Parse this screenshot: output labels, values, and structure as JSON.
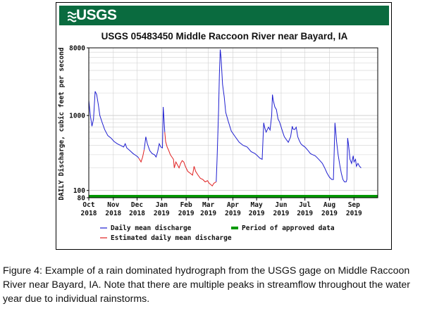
{
  "logo_text": "USGS",
  "caption": "Figure 4: Example of a rain dominated hydrograph from the USGS gage on Middle Raccoon River near Bayard, IA. Note that there are multiple peaks in streamflow throughout the water year due to individual rainstorms.",
  "colors": {
    "banner": "#0a6b3f",
    "daily_mean": "#1f1fd0",
    "estimated": "#e02020",
    "approved": "#009900"
  },
  "chart_data": {
    "type": "line",
    "title": "USGS 05483450 Middle Raccoon River near Bayard, IA",
    "ylabel": "DAILY Discharge, cubic feet per second",
    "xlabel": "",
    "yscale": "log",
    "ylim": [
      80,
      8000
    ],
    "ytick_labels": [
      "8000",
      "1000",
      "100",
      "80"
    ],
    "ytick_values": [
      8000,
      1000,
      100,
      80
    ],
    "xlim": [
      0,
      365
    ],
    "xticks": [
      {
        "pos": 0,
        "month": "Oct",
        "year": "2018"
      },
      {
        "pos": 31,
        "month": "Nov",
        "year": "2018"
      },
      {
        "pos": 61,
        "month": "Dec",
        "year": "2018"
      },
      {
        "pos": 92,
        "month": "Jan",
        "year": "2019"
      },
      {
        "pos": 123,
        "month": "Feb",
        "year": "2019"
      },
      {
        "pos": 151,
        "month": "Mar",
        "year": "2019"
      },
      {
        "pos": 182,
        "month": "Apr",
        "year": "2019"
      },
      {
        "pos": 212,
        "month": "May",
        "year": "2019"
      },
      {
        "pos": 243,
        "month": "Jun",
        "year": "2019"
      },
      {
        "pos": 273,
        "month": "Jul",
        "year": "2019"
      },
      {
        "pos": 304,
        "month": "Aug",
        "year": "2019"
      },
      {
        "pos": 335,
        "month": "Sep",
        "year": "2019"
      }
    ],
    "legend": [
      {
        "label": "Daily mean discharge",
        "color": "#1f1fd0",
        "style": "line"
      },
      {
        "label": "Period of approved data",
        "color": "#009900",
        "style": "thick"
      },
      {
        "label": "Estimated daily mean discharge",
        "color": "#e02020",
        "style": "line"
      }
    ],
    "series": [
      {
        "name": "Daily mean discharge",
        "segments": [
          [
            [
              0,
              1600
            ],
            [
              2,
              1000
            ],
            [
              4,
              720
            ],
            [
              6,
              900
            ],
            [
              8,
              2100
            ],
            [
              10,
              1900
            ],
            [
              12,
              1400
            ],
            [
              14,
              1000
            ],
            [
              17,
              800
            ],
            [
              20,
              650
            ],
            [
              24,
              540
            ],
            [
              28,
              500
            ],
            [
              32,
              450
            ],
            [
              36,
              420
            ],
            [
              40,
              400
            ],
            [
              44,
              380
            ],
            [
              46,
              420
            ],
            [
              48,
              370
            ],
            [
              52,
              340
            ],
            [
              56,
              310
            ],
            [
              60,
              290
            ],
            [
              62,
              280
            ],
            [
              63,
              270
            ]
          ],
          [
            [
              70,
              350
            ],
            [
              72,
              520
            ],
            [
              74,
              420
            ],
            [
              77,
              340
            ],
            [
              80,
              310
            ],
            [
              83,
              300
            ],
            [
              85,
              280
            ],
            [
              87,
              330
            ],
            [
              89,
              420
            ],
            [
              91,
              380
            ],
            [
              93,
              370
            ],
            [
              94,
              1300
            ],
            [
              95,
              900
            ],
            [
              96,
              600
            ]
          ],
          [
            [
              161,
              130
            ],
            [
              162,
              260
            ],
            [
              164,
              1200
            ],
            [
              165,
              3500
            ],
            [
              166,
              7600
            ],
            [
              167,
              6000
            ],
            [
              168,
              4000
            ],
            [
              169,
              2600
            ],
            [
              171,
              1800
            ],
            [
              173,
              1100
            ],
            [
              176,
              850
            ],
            [
              180,
              620
            ],
            [
              185,
              520
            ],
            [
              190,
              440
            ],
            [
              195,
              400
            ],
            [
              200,
              380
            ],
            [
              205,
              330
            ],
            [
              210,
              310
            ],
            [
              213,
              290
            ],
            [
              216,
              270
            ],
            [
              219,
              260
            ],
            [
              221,
              800
            ],
            [
              222,
              700
            ],
            [
              224,
              600
            ],
            [
              227,
              700
            ],
            [
              229,
              640
            ],
            [
              231,
              1000
            ],
            [
              232,
              1900
            ],
            [
              233,
              1600
            ],
            [
              235,
              1300
            ],
            [
              237,
              1200
            ],
            [
              239,
              900
            ],
            [
              241,
              820
            ],
            [
              243,
              700
            ],
            [
              245,
              600
            ],
            [
              247,
              520
            ],
            [
              250,
              470
            ],
            [
              252,
              440
            ],
            [
              255,
              520
            ],
            [
              257,
              720
            ],
            [
              258,
              660
            ],
            [
              260,
              650
            ],
            [
              262,
              700
            ],
            [
              264,
              520
            ],
            [
              266,
              460
            ],
            [
              268,
              420
            ],
            [
              270,
              400
            ],
            [
              273,
              380
            ],
            [
              277,
              340
            ],
            [
              280,
              310
            ],
            [
              283,
              300
            ],
            [
              286,
              290
            ],
            [
              289,
              270
            ],
            [
              292,
              250
            ],
            [
              295,
              230
            ],
            [
              298,
              200
            ],
            [
              301,
              170
            ],
            [
              304,
              150
            ],
            [
              307,
              140
            ],
            [
              309,
              140
            ],
            [
              310,
              330
            ],
            [
              311,
              800
            ],
            [
              312,
              600
            ],
            [
              313,
              450
            ],
            [
              315,
              300
            ],
            [
              317,
              220
            ],
            [
              319,
              170
            ],
            [
              321,
              140
            ],
            [
              323,
              130
            ],
            [
              325,
              130
            ],
            [
              326,
              140
            ],
            [
              327,
              500
            ],
            [
              328,
              420
            ],
            [
              329,
              330
            ],
            [
              330,
              260
            ],
            [
              332,
              230
            ],
            [
              334,
              290
            ],
            [
              335,
              240
            ],
            [
              337,
              260
            ],
            [
              338,
              210
            ],
            [
              340,
              230
            ],
            [
              342,
              210
            ],
            [
              344,
              200
            ]
          ]
        ]
      },
      {
        "name": "Estimated daily mean discharge",
        "segments": [
          [
            [
              63,
              270
            ],
            [
              65,
              250
            ],
            [
              66,
              240
            ],
            [
              68,
              280
            ],
            [
              70,
              350
            ]
          ],
          [
            [
              96,
              600
            ],
            [
              97,
              450
            ],
            [
              99,
              380
            ],
            [
              101,
              340
            ],
            [
              103,
              300
            ],
            [
              105,
              280
            ],
            [
              107,
              260
            ],
            [
              108,
              200
            ],
            [
              110,
              240
            ],
            [
              112,
              220
            ],
            [
              114,
              200
            ],
            [
              116,
              230
            ],
            [
              118,
              250
            ],
            [
              120,
              240
            ],
            [
              122,
              210
            ],
            [
              125,
              180
            ],
            [
              128,
              170
            ],
            [
              131,
              160
            ],
            [
              133,
              210
            ],
            [
              135,
              180
            ],
            [
              138,
              160
            ],
            [
              141,
              145
            ],
            [
              144,
              140
            ],
            [
              147,
              130
            ],
            [
              150,
              135
            ],
            [
              152,
              125
            ],
            [
              154,
              120
            ],
            [
              156,
              115
            ],
            [
              158,
              125
            ],
            [
              161,
              130
            ]
          ]
        ]
      }
    ],
    "approved_period": {
      "label": "Period of approved data",
      "start": 0,
      "end": 365
    }
  }
}
